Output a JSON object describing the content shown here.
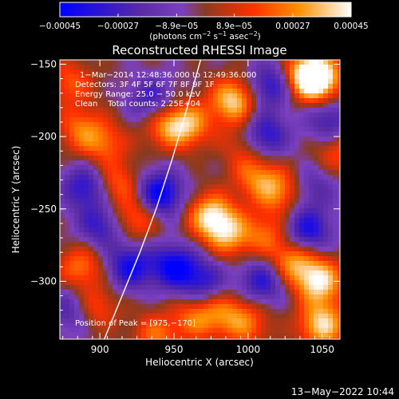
{
  "chart_data": {
    "type": "heatmap",
    "title": "Reconstructed RHESSI Image",
    "xlabel": "Heliocentric X (arcsec)",
    "ylabel": "Heliocentric Y (arcsec)",
    "xlim": [
      873,
      1062
    ],
    "ylim": [
      -340,
      -147
    ],
    "x_ticks": [
      900,
      950,
      1000,
      1050
    ],
    "x_tick_labels": [
      "900",
      "950",
      "1000",
      "1050"
    ],
    "y_ticks": [
      -150,
      -200,
      -250,
      -300
    ],
    "y_tick_labels": [
      "−150",
      "−200",
      "−250",
      "−300"
    ],
    "colorbar": {
      "range": [
        -0.00045,
        0.00045
      ],
      "ticks": [
        -0.00045,
        -0.00027,
        -8.9e-05,
        8.9e-05,
        0.00027,
        0.00045
      ],
      "tick_labels": [
        "−0.00045",
        "−0.00027",
        "−8.9e−05",
        "8.9e−05",
        "0.00027",
        "0.00045"
      ],
      "unit_label": {
        "parts": [
          "(photons cm",
          "−2",
          " s",
          "−1",
          " asec",
          "−2",
          ")"
        ]
      },
      "colors": [
        "#0000ff",
        "#5a2ba5",
        "#7a40c0",
        "#8a3a1f",
        "#ff3000",
        "#ff9000",
        "#ffffff"
      ]
    },
    "annotations": {
      "time_range": "1−Mar−2014 12:48:36.000 to 12:49:36.000",
      "detectors": "Detectors: 3F 4F 5F 6F 7F 8F 9F 1F",
      "energy_range": "Energy Range: 25.0 − 50.0 keV",
      "method": "Clean    Total counts: 2.25E+04",
      "peak": "Position of Peak = [975,−170]"
    },
    "limb_curve": [
      [
        903,
        -340
      ],
      [
        915,
        -310
      ],
      [
        927,
        -280
      ],
      [
        938,
        -250
      ],
      [
        949,
        -215
      ],
      [
        959,
        -180
      ],
      [
        968,
        -147
      ]
    ],
    "bright_regions": [
      {
        "x": 945,
        "y": -192,
        "level": 0.65
      },
      {
        "x": 960,
        "y": -192,
        "level": 0.7
      },
      {
        "x": 990,
        "y": -175,
        "level": 0.95
      },
      {
        "x": 1047,
        "y": -160,
        "level": 1.0
      },
      {
        "x": 1040,
        "y": -158,
        "level": 0.85
      },
      {
        "x": 975,
        "y": -255,
        "level": 0.95
      },
      {
        "x": 987,
        "y": -268,
        "level": 0.7
      },
      {
        "x": 1030,
        "y": -287,
        "level": 0.75
      },
      {
        "x": 1048,
        "y": -300,
        "level": 1.0
      },
      {
        "x": 1050,
        "y": -330,
        "level": 0.95
      },
      {
        "x": 1020,
        "y": -238,
        "level": 0.65
      },
      {
        "x": 1005,
        "y": -227,
        "level": 0.55
      },
      {
        "x": 925,
        "y": -256,
        "level": 0.6
      },
      {
        "x": 887,
        "y": -195,
        "level": 0.55
      },
      {
        "x": 880,
        "y": -163,
        "level": 0.5
      },
      {
        "x": 887,
        "y": -290,
        "level": 0.6
      },
      {
        "x": 897,
        "y": -318,
        "level": 0.5
      },
      {
        "x": 903,
        "y": -205,
        "level": 0.5
      },
      {
        "x": 912,
        "y": -233,
        "level": 0.55
      },
      {
        "x": 985,
        "y": -322,
        "level": 0.5
      },
      {
        "x": 965,
        "y": -325,
        "level": 0.6
      },
      {
        "x": 938,
        "y": -337,
        "level": 0.55
      },
      {
        "x": 1000,
        "y": -330,
        "level": 0.5
      },
      {
        "x": 1012,
        "y": -268,
        "level": 0.5
      },
      {
        "x": 998,
        "y": -205,
        "level": 0.45
      },
      {
        "x": 1060,
        "y": -210,
        "level": 0.5
      }
    ],
    "dim_regions": [
      {
        "x": 940,
        "y": -240,
        "level": -1.0
      },
      {
        "x": 950,
        "y": -290,
        "level": -0.9
      },
      {
        "x": 920,
        "y": -290,
        "level": -0.8
      },
      {
        "x": 1010,
        "y": -200,
        "level": -0.85
      },
      {
        "x": 1040,
        "y": -265,
        "level": -0.8
      },
      {
        "x": 890,
        "y": -235,
        "level": -0.7
      },
      {
        "x": 1010,
        "y": -300,
        "level": -0.7
      },
      {
        "x": 1055,
        "y": -190,
        "level": -0.6
      },
      {
        "x": 935,
        "y": -175,
        "level": -0.6
      },
      {
        "x": 1015,
        "y": -165,
        "level": -0.7
      },
      {
        "x": 900,
        "y": -262,
        "level": -0.6
      },
      {
        "x": 880,
        "y": -320,
        "level": -0.5
      },
      {
        "x": 970,
        "y": -300,
        "level": -0.6
      },
      {
        "x": 1045,
        "y": -235,
        "level": -0.4
      }
    ]
  },
  "footer": {
    "date_time": "13−May−2022 10:44"
  }
}
